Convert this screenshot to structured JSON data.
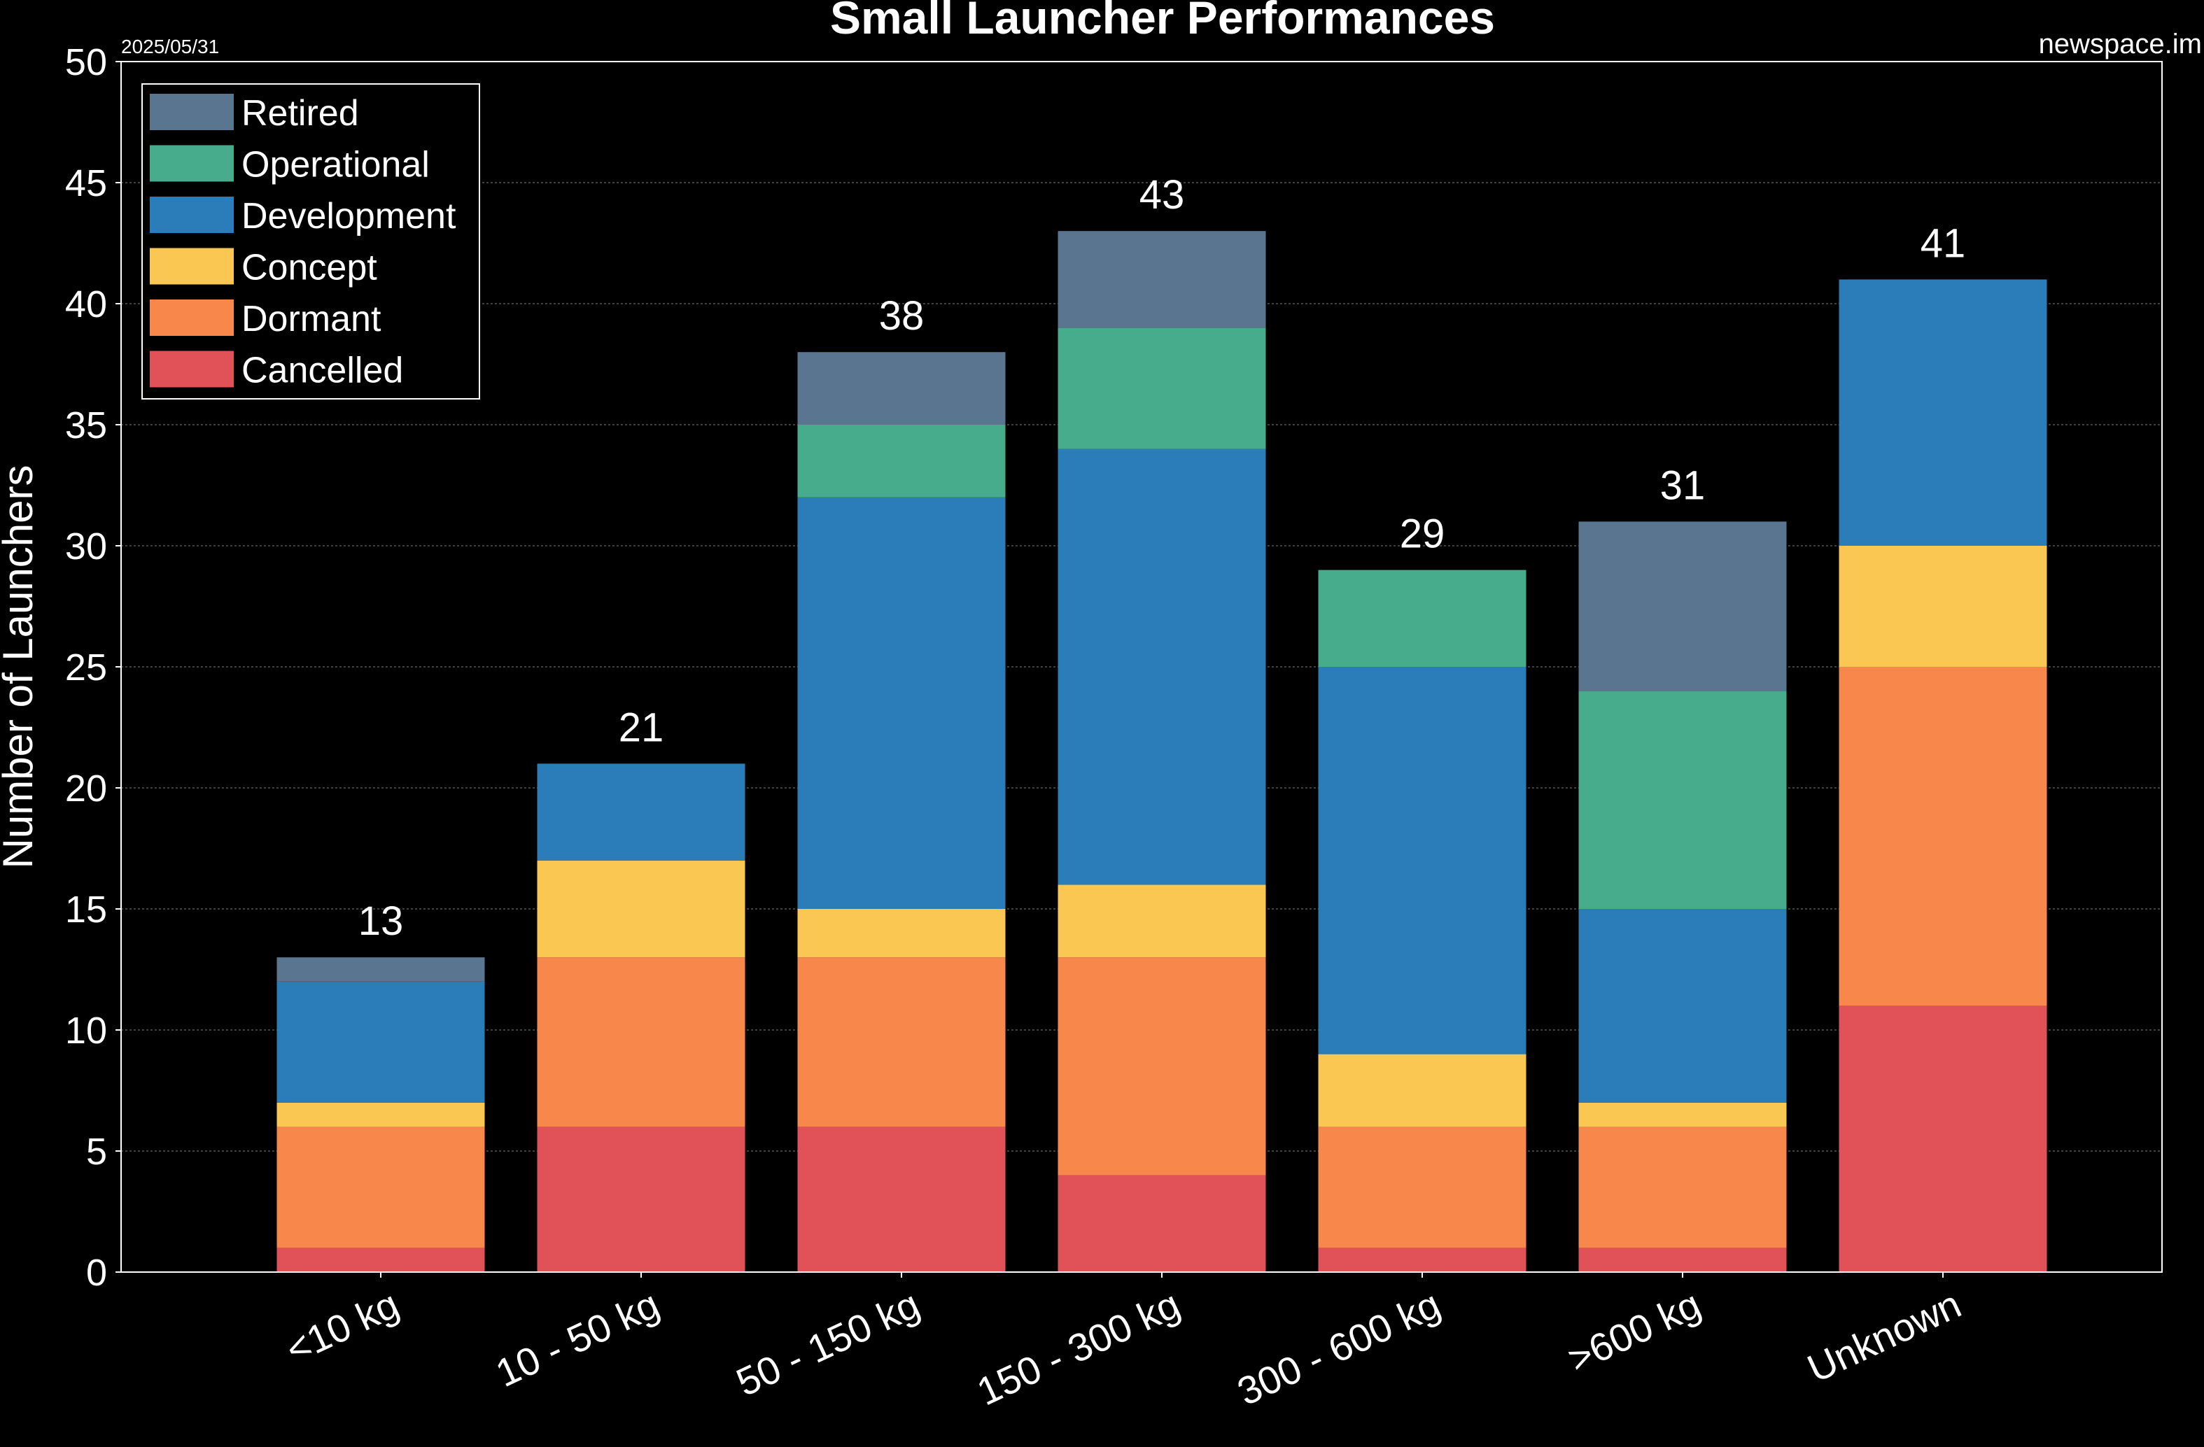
{
  "header": {
    "date": "2025/05/31",
    "source": "newspace.im"
  },
  "chart_data": {
    "type": "bar",
    "stacked": true,
    "title": "Small Launcher Performances",
    "xlabel": "",
    "ylabel": "Number of Launchers",
    "ylim": [
      0,
      50
    ],
    "yticks": [
      0,
      5,
      10,
      15,
      20,
      25,
      30,
      35,
      40,
      45,
      50
    ],
    "grid": true,
    "legend_position": "top-left",
    "categories": [
      "<10 kg",
      "10 - 50 kg",
      "50 - 150 kg",
      "150 - 300 kg",
      "300 - 600 kg",
      ">600 kg",
      "Unknown"
    ],
    "series": [
      {
        "name": "Cancelled",
        "color": "#e05257",
        "values": [
          1,
          6,
          6,
          4,
          1,
          1,
          11
        ]
      },
      {
        "name": "Dormant",
        "color": "#f8874b",
        "values": [
          5,
          7,
          7,
          9,
          5,
          5,
          14
        ]
      },
      {
        "name": "Concept",
        "color": "#fac752",
        "values": [
          1,
          4,
          2,
          3,
          3,
          1,
          5
        ]
      },
      {
        "name": "Development",
        "color": "#2a7db8",
        "values": [
          5,
          4,
          17,
          18,
          16,
          8,
          11
        ]
      },
      {
        "name": "Operational",
        "color": "#46ac8c",
        "values": [
          0,
          0,
          3,
          5,
          4,
          9,
          0
        ]
      },
      {
        "name": "Retired",
        "color": "#5a7590",
        "values": [
          1,
          0,
          3,
          4,
          0,
          7,
          0
        ]
      }
    ],
    "totals": [
      13,
      21,
      38,
      43,
      29,
      31,
      41
    ]
  }
}
